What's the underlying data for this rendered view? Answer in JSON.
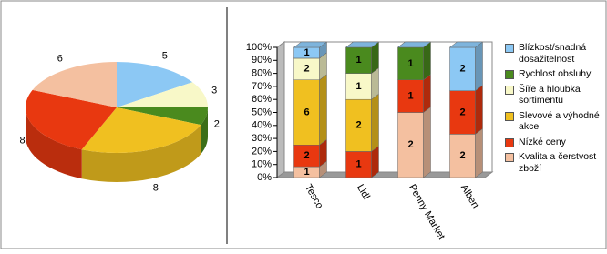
{
  "chart_data": [
    {
      "type": "pie",
      "values": [
        5,
        3,
        2,
        8,
        8,
        6
      ],
      "colors": [
        "#8cc8f4",
        "#f8f8c8",
        "#4a8a1e",
        "#f0c020",
        "#e83810",
        "#f4c0a0"
      ]
    },
    {
      "type": "bar",
      "stacked": "percent",
      "categories": [
        "Tesco",
        "Lidl",
        "Penny Market",
        "Albert"
      ],
      "series": [
        {
          "name": "Blízkost/snadná dosažitelnost",
          "color": "#8cc8f4",
          "values": [
            1,
            0,
            0,
            2
          ]
        },
        {
          "name": "Rychlost obsluhy",
          "color": "#4a8a1e",
          "values": [
            0,
            1,
            1,
            0
          ]
        },
        {
          "name": "Šíře a hloubka sortimentu",
          "color": "#f8f8c8",
          "values": [
            2,
            1,
            0,
            0
          ]
        },
        {
          "name": "Slevové a výhodné akce",
          "color": "#f0c020",
          "values": [
            6,
            2,
            0,
            0
          ]
        },
        {
          "name": "Nízké ceny",
          "color": "#e83810",
          "values": [
            2,
            1,
            1,
            2
          ]
        },
        {
          "name": "Kvalita a čerstvost zboží",
          "color": "#f4c0a0",
          "values": [
            1,
            0,
            2,
            2
          ]
        }
      ],
      "ylim": [
        0,
        100
      ],
      "yticks": [
        {
          "value": 0,
          "label": "0%"
        },
        {
          "value": 10,
          "label": "10%"
        },
        {
          "value": 20,
          "label": "20%"
        },
        {
          "value": 30,
          "label": "30%"
        },
        {
          "value": 40,
          "label": "40%"
        },
        {
          "value": 50,
          "label": "50%"
        },
        {
          "value": 60,
          "label": "60%"
        },
        {
          "value": 70,
          "label": "70%"
        },
        {
          "value": 80,
          "label": "80%"
        },
        {
          "value": 90,
          "label": "90%"
        },
        {
          "value": 100,
          "label": "100%"
        }
      ],
      "legend": "right"
    }
  ]
}
